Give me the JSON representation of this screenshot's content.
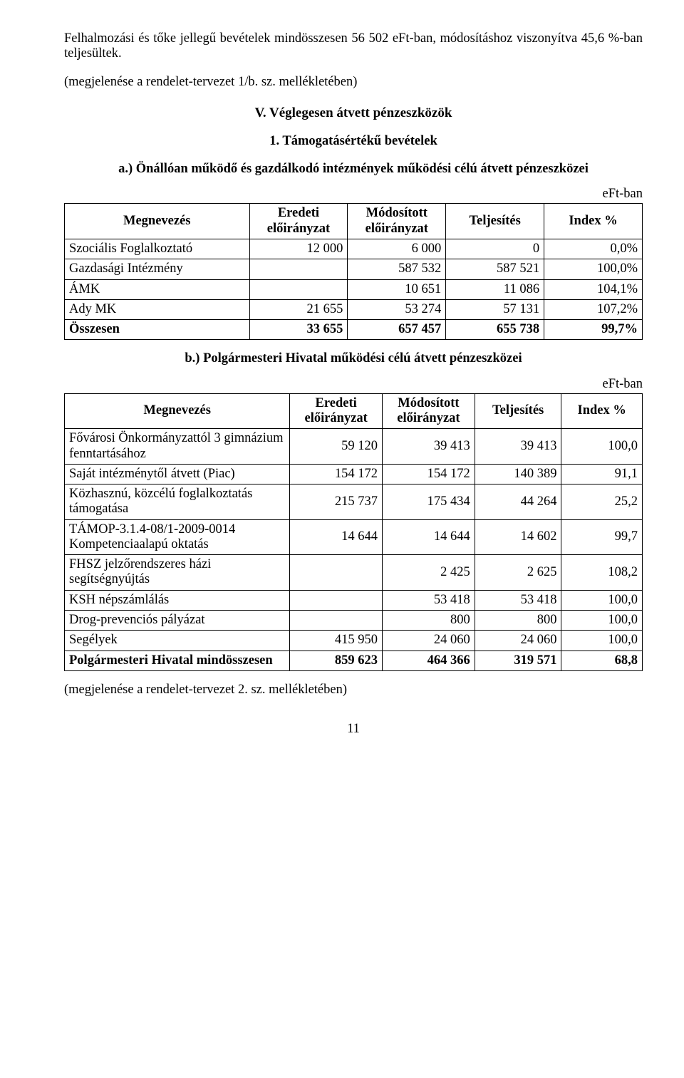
{
  "intro": {
    "p1": "Felhalmozási és tőke jellegű bevételek mindösszesen 56 502 eFt-ban, módosításhoz viszonyítva 45,6 %-ban teljesültek.",
    "p2": "(megjelenése a rendelet-tervezet 1/b. sz. mellékletében)"
  },
  "section_v": {
    "title": "V. Véglegesen átvett pénzeszközök",
    "sub_1": "1. Támogatásértékű bevételek",
    "sub_a": "a.) Önállóan működő és gazdálkodó intézmények működési célú átvett pénzeszközei",
    "sub_b": "b.) Polgármesteri Hivatal működési célú átvett pénzeszközei"
  },
  "unit": "eFt-ban",
  "table_a": {
    "columns": [
      "Megnevezés",
      "Eredeti előirányzat",
      "Módosított előirányzat",
      "Teljesítés",
      "Index %"
    ],
    "rows": [
      {
        "label": "Szociális Foglalkoztató",
        "v1": "12 000",
        "v2": "6 000",
        "v3": "0",
        "v4": "0,0%",
        "bold": false
      },
      {
        "label": "Gazdasági Intézmény",
        "v1": "",
        "v2": "587 532",
        "v3": "587 521",
        "v4": "100,0%",
        "bold": false
      },
      {
        "label": "ÁMK",
        "v1": "",
        "v2": "10 651",
        "v3": "11 086",
        "v4": "104,1%",
        "bold": false
      },
      {
        "label": "Ady MK",
        "v1": "21 655",
        "v2": "53 274",
        "v3": "57 131",
        "v4": "107,2%",
        "bold": false
      },
      {
        "label": "Összesen",
        "v1": "33 655",
        "v2": "657 457",
        "v3": "655 738",
        "v4": "99,7%",
        "bold": true
      }
    ]
  },
  "table_b": {
    "columns": [
      "Megnevezés",
      "Eredeti előirányzat",
      "Módosított előirányzat",
      "Teljesítés",
      "Index %"
    ],
    "rows": [
      {
        "label": "Fővárosi Önkormányzattól 3 gimnázium fenntartásához",
        "v1": "59 120",
        "v2": "39 413",
        "v3": "39 413",
        "v4": "100,0",
        "bold": false
      },
      {
        "label": "Saját intézménytől átvett (Piac)",
        "v1": "154 172",
        "v2": "154 172",
        "v3": "140 389",
        "v4": "91,1",
        "bold": false
      },
      {
        "label": "Közhasznú, közcélú foglalkoztatás támogatása",
        "v1": "215 737",
        "v2": "175 434",
        "v3": "44 264",
        "v4": "25,2",
        "bold": false
      },
      {
        "label": "TÁMOP-3.1.4-08/1-2009-0014 Kompetenciaalapú oktatás",
        "v1": "14 644",
        "v2": "14 644",
        "v3": "14 602",
        "v4": "99,7",
        "bold": false
      },
      {
        "label": "FHSZ jelzőrendszeres házi segítségnyújtás",
        "v1": "",
        "v2": "2 425",
        "v3": "2 625",
        "v4": "108,2",
        "bold": false
      },
      {
        "label": "KSH népszámlálás",
        "v1": "",
        "v2": "53 418",
        "v3": "53 418",
        "v4": "100,0",
        "bold": false
      },
      {
        "label": "Drog-prevenciós pályázat",
        "v1": "",
        "v2": "800",
        "v3": "800",
        "v4": "100,0",
        "bold": false
      },
      {
        "label": "Segélyek",
        "v1": "415 950",
        "v2": "24 060",
        "v3": "24 060",
        "v4": "100,0",
        "bold": false
      },
      {
        "label": "Polgármesteri Hivatal mindösszesen",
        "v1": "859 623",
        "v2": "464 366",
        "v3": "319 571",
        "v4": "68,8",
        "bold": true
      }
    ]
  },
  "closing": "(megjelenése a rendelet-tervezet 2. sz. mellékletében)",
  "page": "11"
}
